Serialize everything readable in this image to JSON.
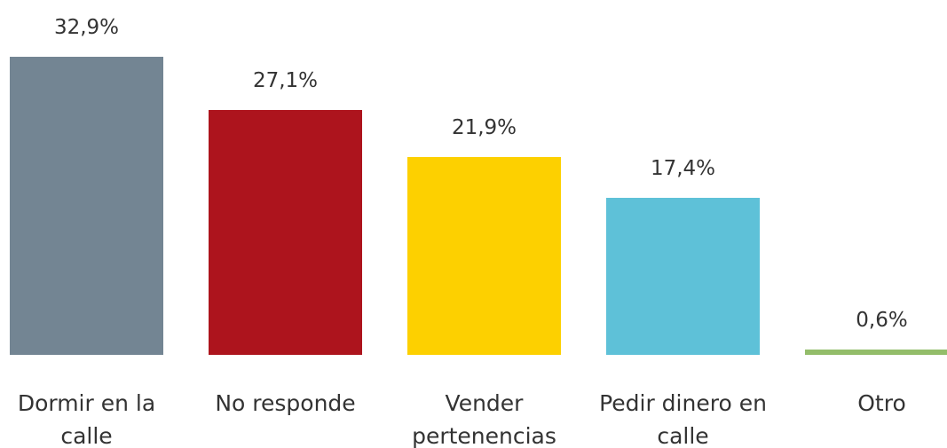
{
  "chart_data": {
    "type": "bar",
    "categories": [
      "Dormir en la calle",
      "No responde",
      "Vender pertenencias",
      "Pedir dinero en calle",
      "Otro"
    ],
    "values": [
      32.9,
      27.1,
      21.9,
      17.4,
      0.6
    ],
    "value_labels": [
      "32,9%",
      "27,1%",
      "21,9%",
      "17,4%",
      "0,6%"
    ],
    "colors": [
      "#738593",
      "#ad141d",
      "#fdd000",
      "#5ec1d8",
      "#93bd6a"
    ]
  }
}
